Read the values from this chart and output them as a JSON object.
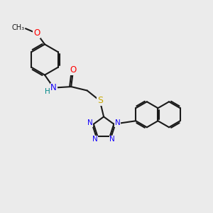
{
  "bg_color": "#ebebeb",
  "bond_color": "#1a1a1a",
  "bond_width": 1.5,
  "atom_colors": {
    "N": "#1400fa",
    "O": "#ff0000",
    "S": "#c8a800",
    "H": "#008888",
    "C": "#1a1a1a"
  },
  "fig_width": 3.0,
  "fig_height": 3.0,
  "dpi": 100,
  "xlim": [
    0,
    10
  ],
  "ylim": [
    0,
    10
  ]
}
